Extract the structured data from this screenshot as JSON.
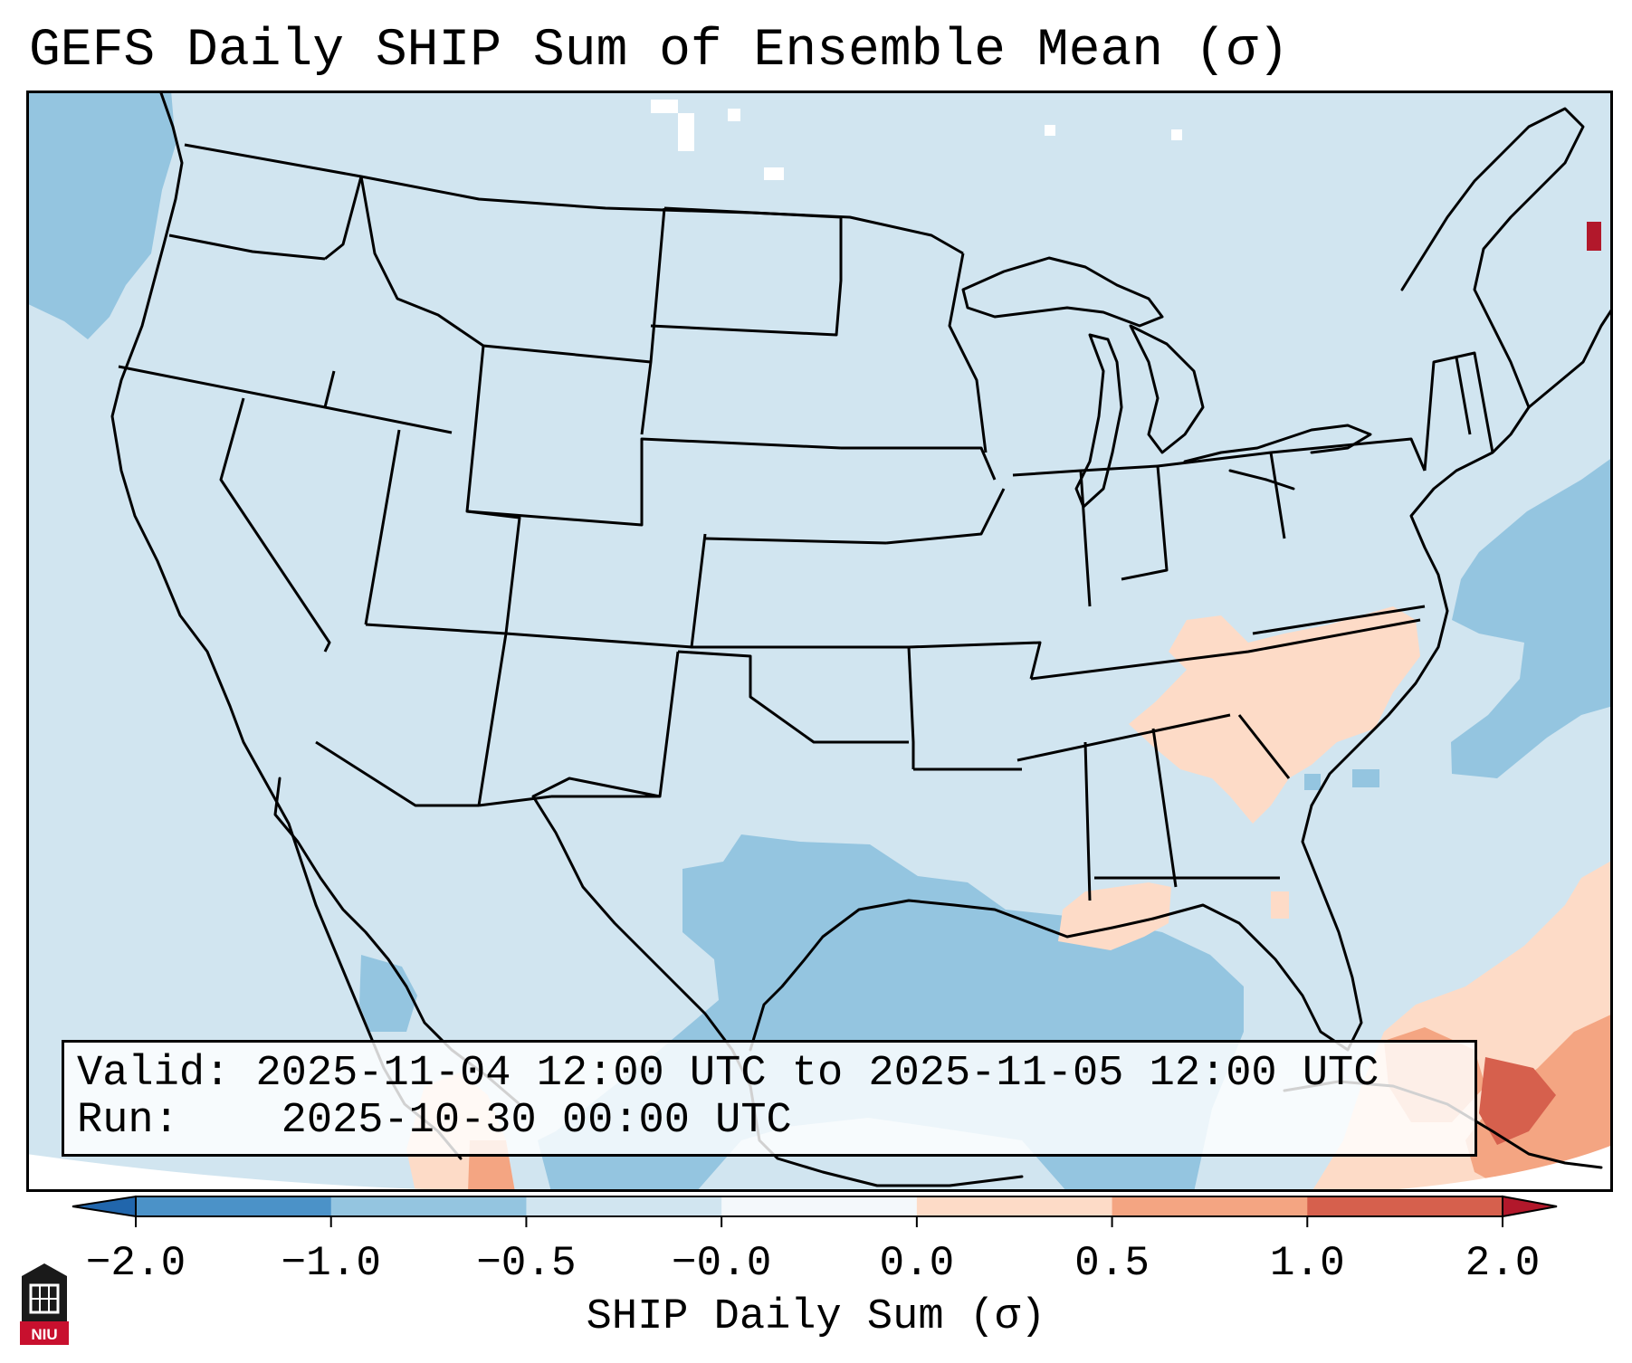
{
  "title": "GEFS Daily SHIP Sum of Ensemble Mean (σ)",
  "info": {
    "valid_label": "Valid:",
    "valid_value": "2025-11-04 12:00 UTC to 2025-11-05 12:00 UTC",
    "run_label": "Run:",
    "run_value": "2025-10-30 00:00 UTC"
  },
  "colorbar": {
    "label": "SHIP Daily Sum (σ)",
    "tick_labels": [
      "−2.0",
      "−1.0",
      "−0.5",
      "−0.0",
      "0.0",
      "0.5",
      "1.0",
      "2.0"
    ],
    "bins": [
      {
        "color": "#4b92c8"
      },
      {
        "color": "#94c5e0"
      },
      {
        "color": "#d1e5f0"
      },
      {
        "color": "#f4f8fb"
      },
      {
        "color": "#fddbc7"
      },
      {
        "color": "#f4a582"
      },
      {
        "color": "#d6604d"
      }
    ],
    "extend_low_color": "#2166ac",
    "extend_high_color": "#b2182b"
  },
  "map": {
    "background_color": "#d1e5f0",
    "outside_projection_color": "#ffffff"
  },
  "logo": {
    "text": "NIU",
    "color": "#c8102e"
  }
}
